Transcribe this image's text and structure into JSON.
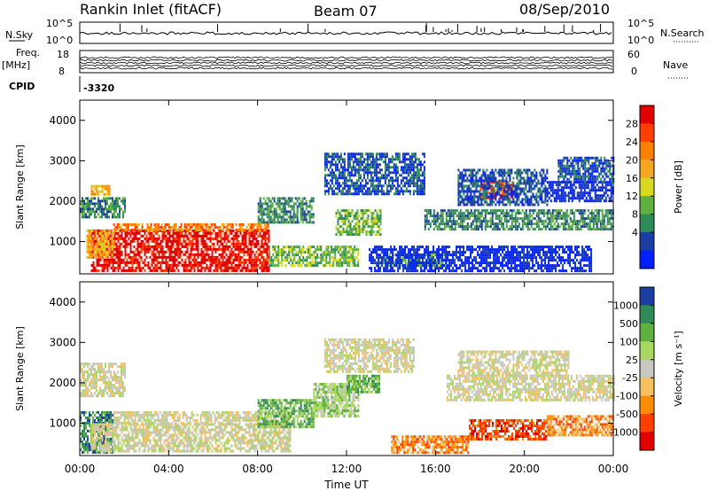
{
  "header": {
    "station": "Rankin Inlet (fitACF)",
    "beam": "Beam 07",
    "date": "08/Sep/2010"
  },
  "top_panels": {
    "nsky_label": "N.Sky",
    "nsearch_label": "N.Search",
    "noise_ticks": [
      "10^5",
      "10^0"
    ],
    "noise_right_ticks": [
      "10^5",
      "10^0"
    ],
    "freq_label": "Freq.",
    "freq_unit": "[MHz]",
    "freq_ticks": [
      "18",
      "8"
    ],
    "nave_label": "Nave",
    "nave_ticks": [
      "60",
      "0"
    ],
    "cpid_label": "CPID",
    "cpid_value": "-3320"
  },
  "chart_data": [
    {
      "type": "heatmap",
      "ylabel": "Slant Range [km]",
      "y_ticks": [
        1000,
        2000,
        3000,
        4000
      ],
      "ylim": [
        200,
        4500
      ],
      "xlim_hours": [
        0,
        24
      ],
      "colorbar": {
        "label": "Power [dB]",
        "ticks": [
          "28",
          "24",
          "20",
          "16",
          "12",
          "8",
          "4"
        ],
        "colors": [
          "#e00000",
          "#ff4000",
          "#ff7f00",
          "#f5a623",
          "#d8d820",
          "#5fb040",
          "#2e8b57",
          "#1a3fa0",
          "#0020ff"
        ]
      },
      "regions": [
        {
          "t0": 0.5,
          "t1": 8.5,
          "r0": 300,
          "r1": 1300,
          "level": 0
        },
        {
          "t0": 1.5,
          "t1": 8.5,
          "r0": 1300,
          "r1": 1450,
          "level": 2
        },
        {
          "t0": 0.3,
          "t1": 1.5,
          "r0": 600,
          "r1": 1300,
          "level": 3
        },
        {
          "t0": 0.5,
          "t1": 1.3,
          "r0": 2200,
          "r1": 2400,
          "level": 3
        },
        {
          "t0": 0.0,
          "t1": 2.0,
          "r0": 1600,
          "r1": 2100,
          "level": 6
        },
        {
          "t0": 8.0,
          "t1": 10.5,
          "r0": 1500,
          "r1": 2100,
          "level": 6
        },
        {
          "t0": 8.5,
          "t1": 12.5,
          "r0": 400,
          "r1": 900,
          "level": 5
        },
        {
          "t0": 11.0,
          "t1": 15.5,
          "r0": 2200,
          "r1": 3200,
          "level": 7
        },
        {
          "t0": 11.5,
          "t1": 13.5,
          "r0": 1200,
          "r1": 1800,
          "level": 5
        },
        {
          "t0": 13.5,
          "t1": 16.5,
          "r0": 400,
          "r1": 700,
          "level": 5
        },
        {
          "t0": 15.5,
          "t1": 24.0,
          "r0": 1300,
          "r1": 1800,
          "level": 6
        },
        {
          "t0": 18.0,
          "t1": 19.5,
          "r0": 2100,
          "r1": 2500,
          "level": 1
        },
        {
          "t0": 17.0,
          "t1": 21.0,
          "r0": 1900,
          "r1": 2800,
          "level": 7
        },
        {
          "t0": 21.0,
          "t1": 24.0,
          "r0": 2000,
          "r1": 2500,
          "level": 8
        },
        {
          "t0": 13.0,
          "t1": 23.0,
          "r0": 300,
          "r1": 900,
          "level": 8
        },
        {
          "t0": 21.5,
          "t1": 24.0,
          "r0": 2500,
          "r1": 3100,
          "level": 7
        }
      ]
    },
    {
      "type": "heatmap",
      "ylabel": "Slant Range [km]",
      "y_ticks": [
        1000,
        2000,
        3000,
        4000
      ],
      "ylim": [
        200,
        4500
      ],
      "xlim_hours": [
        0,
        24
      ],
      "xlabel": "Time UT",
      "x_ticks": [
        "00:00",
        "04:00",
        "08:00",
        "12:00",
        "16:00",
        "20:00",
        "00:00"
      ],
      "colorbar": {
        "label": "Velocity [m s⁻¹]",
        "ticks": [
          "1000",
          "500",
          "100",
          "25",
          "-25",
          "-100",
          "-500",
          "-1000"
        ],
        "colors": [
          "#1a3fa0",
          "#2e8b57",
          "#5fb040",
          "#a8d860",
          "#c8c8c0",
          "#f5c060",
          "#ff8c00",
          "#ff4000",
          "#e00000"
        ]
      },
      "regions": [
        {
          "t0": 0.0,
          "t1": 1.5,
          "r0": 300,
          "r1": 1300,
          "level": 1
        },
        {
          "t0": 0.5,
          "t1": 9.5,
          "r0": 300,
          "r1": 1000,
          "level": 4
        },
        {
          "t0": 1.5,
          "t1": 9.5,
          "r0": 1000,
          "r1": 1300,
          "level": 4
        },
        {
          "t0": 0.0,
          "t1": 2.0,
          "r0": 1700,
          "r1": 2500,
          "level": 4
        },
        {
          "t0": 8.0,
          "t1": 10.5,
          "r0": 900,
          "r1": 1600,
          "level": 2
        },
        {
          "t0": 10.5,
          "t1": 12.5,
          "r0": 1200,
          "r1": 2000,
          "level": 3
        },
        {
          "t0": 11.0,
          "t1": 15.0,
          "r0": 2300,
          "r1": 3100,
          "level": 4
        },
        {
          "t0": 12.0,
          "t1": 13.5,
          "r0": 1800,
          "r1": 2200,
          "level": 2
        },
        {
          "t0": 14.0,
          "t1": 17.5,
          "r0": 300,
          "r1": 700,
          "level": 6
        },
        {
          "t0": 16.5,
          "t1": 24.0,
          "r0": 1600,
          "r1": 2200,
          "level": 4
        },
        {
          "t0": 17.5,
          "t1": 21.0,
          "r0": 600,
          "r1": 1100,
          "level": 7
        },
        {
          "t0": 21.0,
          "t1": 24.0,
          "r0": 700,
          "r1": 1200,
          "level": 6
        },
        {
          "t0": 17.0,
          "t1": 22.0,
          "r0": 2200,
          "r1": 2800,
          "level": 4
        }
      ]
    }
  ]
}
